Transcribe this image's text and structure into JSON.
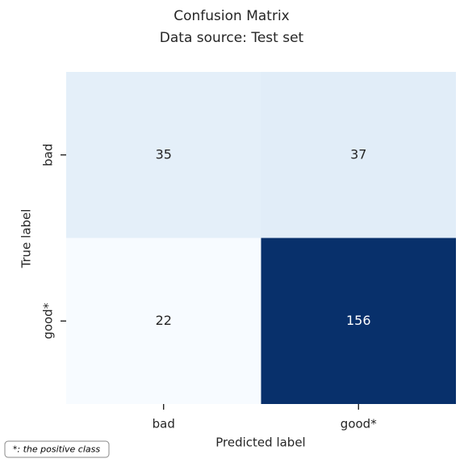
{
  "chart_data": {
    "type": "heatmap",
    "title": "Confusion Matrix",
    "subtitle": "Data source: Test set",
    "x_label": "Predicted label",
    "y_label": "True label",
    "x_categories": [
      "bad",
      "good*"
    ],
    "y_categories": [
      "bad",
      "good*"
    ],
    "values": [
      [
        35,
        37
      ],
      [
        22,
        156
      ]
    ],
    "colorscale": [
      "#f7fbff",
      "#deebf7",
      "#c6dbef",
      "#9ecae1",
      "#6baed6",
      "#4292c6",
      "#2171b5",
      "#08519c",
      "#08306b"
    ],
    "annotations": [
      "*: the positive class"
    ]
  }
}
